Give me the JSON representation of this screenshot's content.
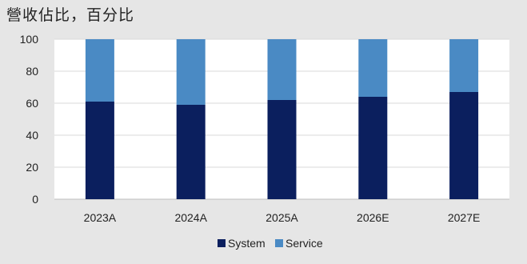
{
  "chart_data": {
    "type": "bar",
    "stacked": true,
    "title": "營收佔比，百分比",
    "categories": [
      "2023A",
      "2024A",
      "2025A",
      "2026E",
      "2027E"
    ],
    "series": [
      {
        "name": "System",
        "values": [
          61,
          59,
          62,
          64,
          67
        ],
        "color": "#0b1f5e"
      },
      {
        "name": "Service",
        "values": [
          39,
          41,
          38,
          36,
          33
        ],
        "color": "#4a8ac4"
      }
    ],
    "ylim": [
      0,
      100
    ],
    "yticks": [
      0,
      20,
      40,
      60,
      80,
      100
    ],
    "grid": true,
    "legend": "bottom-center"
  }
}
